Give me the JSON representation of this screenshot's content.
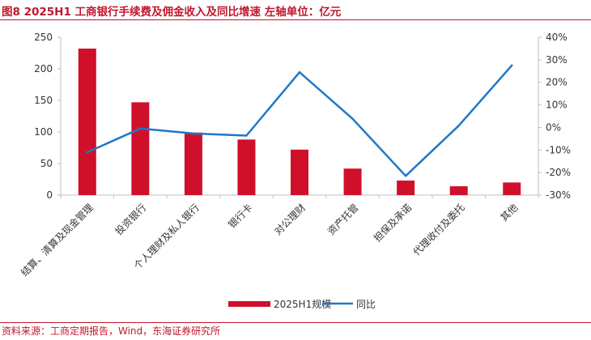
{
  "figure": {
    "title": "图8  2025H1 工商银行手续费及佣金收入及同比增速  左轴单位：亿元",
    "source": "资料来源：工商定期报告，Wind，东海证券研究所"
  },
  "colors": {
    "bar": "#d0102b",
    "line": "#1f77c8",
    "accent": "#c0172d",
    "axis": "#bfbfbf"
  },
  "chart_data": {
    "type": "bar",
    "categories": [
      "结算、清算及现金管理",
      "投资银行",
      "个人理财及私人银行",
      "银行卡",
      "对公理财",
      "资产托管",
      "担保及承诺",
      "代理收付及委托",
      "其他"
    ],
    "series": [
      {
        "name": "2025H1规模",
        "type": "bar",
        "axis": "left",
        "values": [
          232,
          147,
          99,
          88,
          72,
          42,
          23,
          14,
          20
        ]
      },
      {
        "name": "同比",
        "type": "line",
        "axis": "right",
        "values": [
          -11.0,
          -0.5,
          -2.7,
          -3.6,
          24.5,
          3.8,
          -21.5,
          0.8,
          27.5
        ]
      }
    ],
    "y_left": {
      "ylim": [
        0,
        250
      ],
      "ticks": [
        0,
        50,
        100,
        150,
        200,
        250
      ],
      "tick_labels": [
        "0",
        "50",
        "100",
        "150",
        "200",
        "250"
      ]
    },
    "y_right": {
      "ylim": [
        -30,
        40
      ],
      "ticks": [
        -30,
        -20,
        -10,
        0,
        10,
        20,
        30,
        40
      ],
      "tick_labels": [
        "-30%",
        "-20%",
        "-10%",
        "0%",
        "10%",
        "20%",
        "30%",
        "40%"
      ]
    },
    "grid": false,
    "legend_position": "bottom"
  }
}
